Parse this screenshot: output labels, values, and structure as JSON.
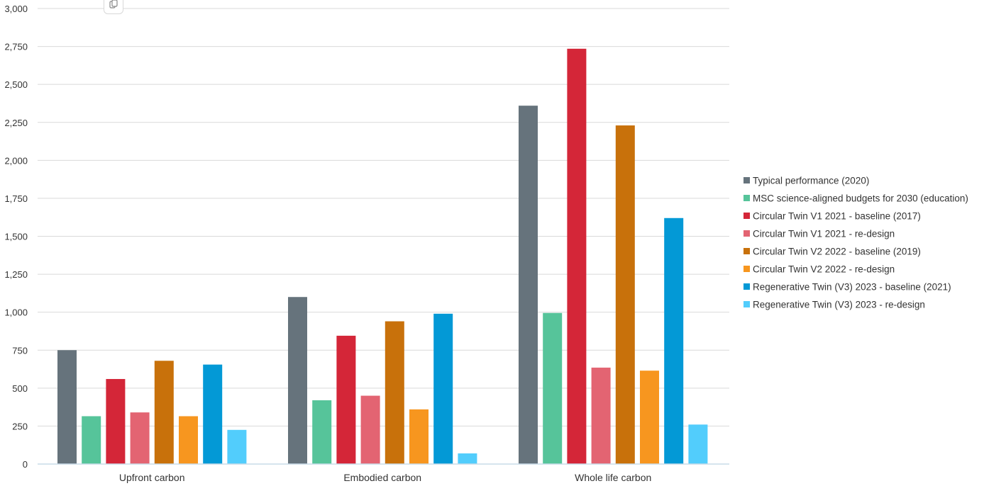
{
  "chart_data": {
    "type": "bar",
    "categories": [
      "Upfront carbon",
      "Embodied carbon",
      "Whole life carbon"
    ],
    "series": [
      {
        "name": "Typical performance (2020)",
        "color": "#66737c",
        "values": [
          750,
          1100,
          2360
        ]
      },
      {
        "name": "MSC science-aligned budgets for 2030 (education)",
        "color": "#56c49a",
        "values": [
          315,
          420,
          995
        ]
      },
      {
        "name": "Circular Twin V1 2021 - baseline (2017)",
        "color": "#d42638",
        "values": [
          560,
          845,
          2735
        ]
      },
      {
        "name": "Circular Twin V1 2021 - re-design",
        "color": "#e36472",
        "values": [
          340,
          450,
          635
        ]
      },
      {
        "name": "Circular Twin V2 2022 - baseline (2019)",
        "color": "#c8710b",
        "values": [
          680,
          940,
          2230
        ]
      },
      {
        "name": "Circular Twin V2 2022 - re-design",
        "color": "#f7961f",
        "values": [
          315,
          360,
          615
        ]
      },
      {
        "name": "Regenerative Twin (V3) 2023 - baseline (2021)",
        "color": "#0399d6",
        "values": [
          655,
          990,
          1620
        ]
      },
      {
        "name": "Regenerative Twin (V3) 2023 - re-design",
        "color": "#52cdfc",
        "values": [
          225,
          70,
          260
        ]
      }
    ],
    "yticks": [
      0,
      250,
      500,
      750,
      1000,
      1250,
      1500,
      1750,
      2000,
      2250,
      2500,
      2750,
      3000
    ],
    "ytick_labels": [
      "0",
      "250",
      "500",
      "750",
      "1,000",
      "1,250",
      "1,500",
      "1,750",
      "2,000",
      "2,250",
      "2,500",
      "2,750",
      "3,000"
    ],
    "ylim": [
      0,
      3000
    ],
    "grid": true,
    "legend_position": "right",
    "title": "",
    "xlabel": "",
    "ylabel": ""
  },
  "ui": {
    "copy_icon": "copy-icon"
  }
}
